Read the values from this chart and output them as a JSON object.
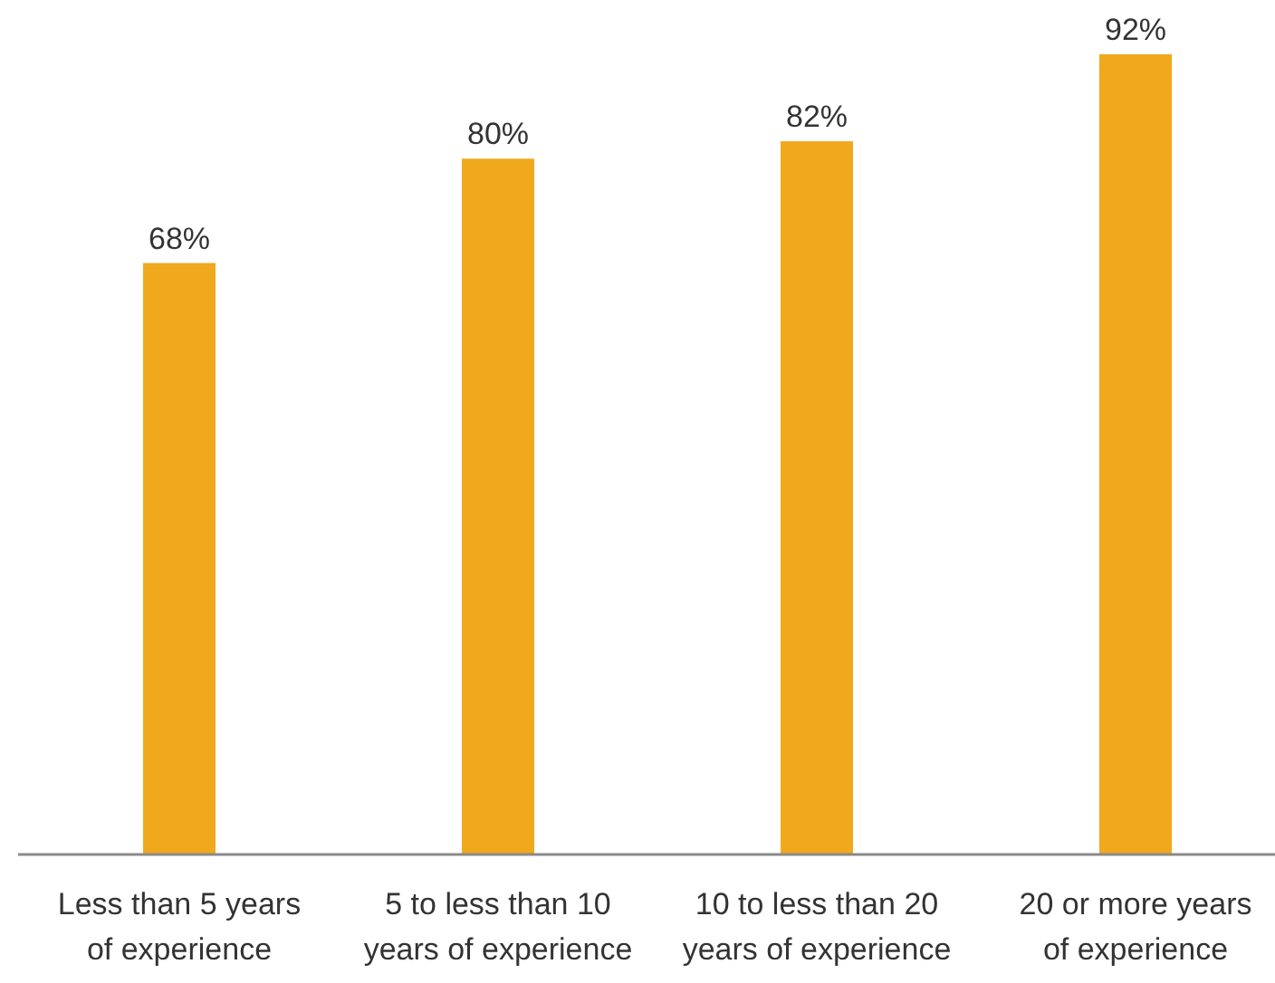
{
  "chart_data": {
    "type": "bar",
    "categories": [
      "Less than 5 years of experience",
      "5 to less than 10 years of experience",
      "10 to less than 20 years of experience",
      "20 or more years of experience"
    ],
    "values": [
      68,
      80,
      82,
      92
    ],
    "value_labels": [
      "68%",
      "80%",
      "82%",
      "92%"
    ],
    "color": "#f0a81c"
  }
}
